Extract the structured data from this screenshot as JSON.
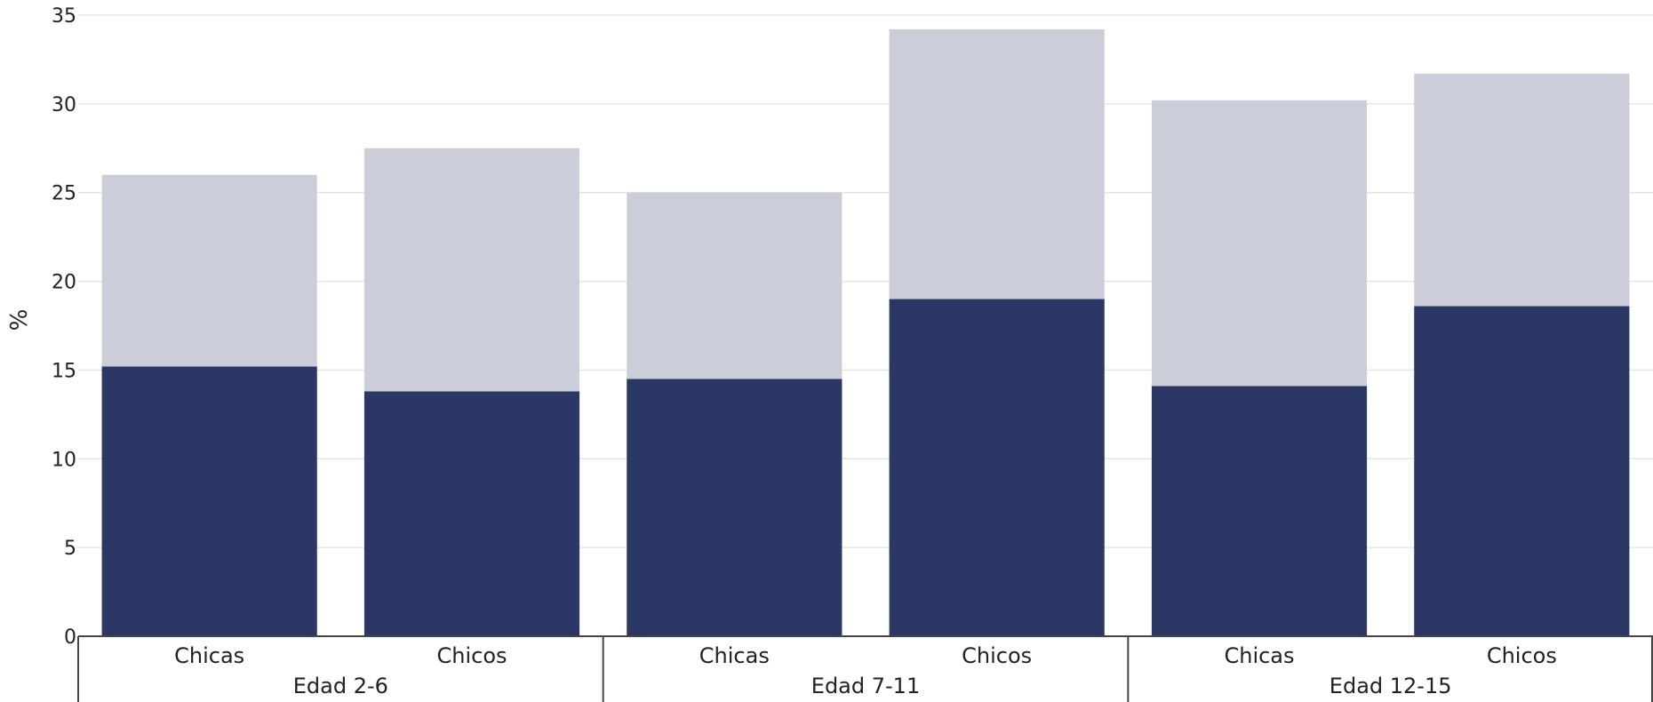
{
  "chart_data": {
    "type": "bar",
    "stacked": true,
    "ylabel": "%",
    "xlabel": "",
    "ylim": [
      0,
      35
    ],
    "yticks": [
      0,
      5,
      10,
      15,
      20,
      25,
      30,
      35
    ],
    "grid": true,
    "groups": [
      {
        "label": "Edad 2-6",
        "categories": [
          "Chicas",
          "Chicos"
        ]
      },
      {
        "label": "Edad 7-11",
        "categories": [
          "Chicas",
          "Chicos"
        ]
      },
      {
        "label": "Edad 12-15",
        "categories": [
          "Chicas",
          "Chicos"
        ]
      }
    ],
    "series": [
      {
        "color": "#2b3765",
        "values": [
          15.2,
          13.8,
          14.5,
          19.0,
          14.1,
          18.6
        ]
      },
      {
        "color": "#cbcdd8",
        "values": [
          10.8,
          13.7,
          10.5,
          15.2,
          16.1,
          13.1
        ]
      }
    ],
    "colors": {
      "grid": "#e6e6e6",
      "axis": "#444444"
    }
  }
}
